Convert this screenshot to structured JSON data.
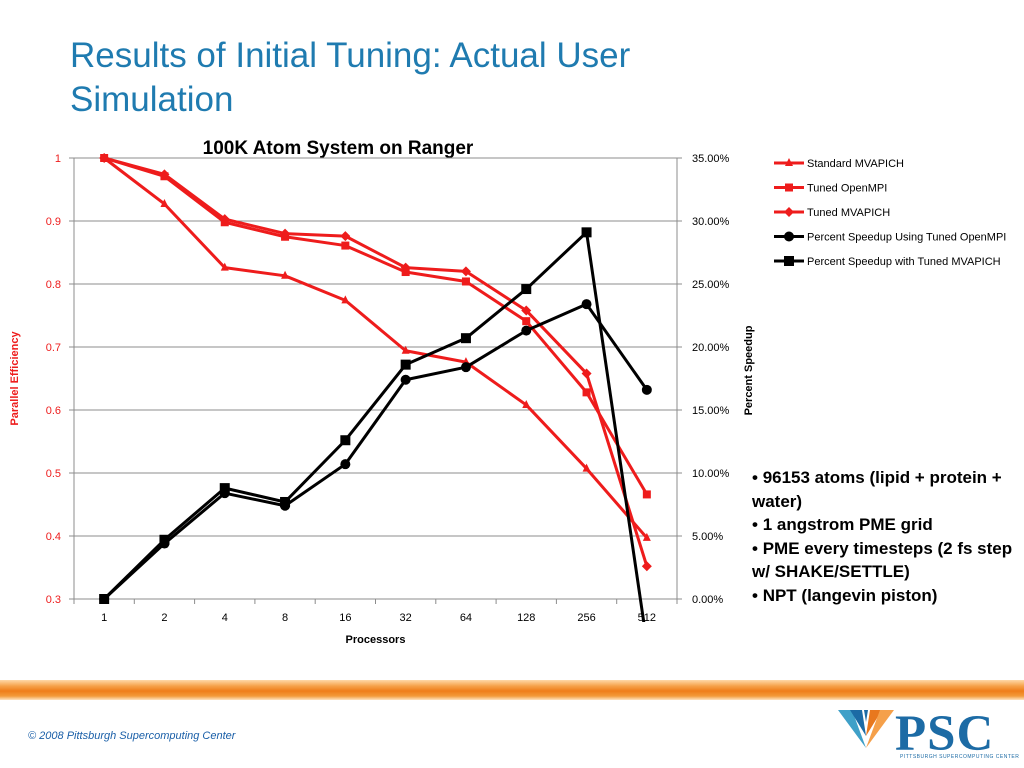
{
  "slide": {
    "title": "Results of Initial Tuning: Actual User Simulation",
    "bullets": [
      "96153 atoms (lipid + protein + water)",
      "1 angstrom PME grid",
      "PME every timesteps (2 fs step w/ SHAKE/SETTLE)",
      "NPT (langevin piston)"
    ],
    "copyright": "© 2008 Pittsburgh Supercomputing Center",
    "logo_text": "PSC",
    "logo_subtext": "PITTSBURGH SUPERCOMPUTING CENTER"
  },
  "chart_data": {
    "type": "line",
    "title": "100K Atom System on Ranger",
    "xlabel": "Processors",
    "ylabel": "Parallel Efficiency",
    "y2label": "Percent Speedup",
    "categories": [
      "1",
      "2",
      "4",
      "8",
      "16",
      "32",
      "64",
      "128",
      "256",
      "512"
    ],
    "ylim": [
      0.3,
      1
    ],
    "yticks": [
      "1",
      "0.9",
      "0.8",
      "0.7",
      "0.6",
      "0.5",
      "0.4",
      "0.3"
    ],
    "y2lim": [
      0,
      35
    ],
    "y2ticks": [
      "35.00%",
      "30.00%",
      "25.00%",
      "20.00%",
      "15.00%",
      "10.00%",
      "5.00%",
      "0.00%"
    ],
    "grid": true,
    "legend_position": "right",
    "series": [
      {
        "name": "Standard MVAPICH",
        "axis": "left",
        "color": "#ee1c1c",
        "marker": "triangle",
        "values": [
          1.0,
          0.927,
          0.826,
          0.813,
          0.774,
          0.694,
          0.676,
          0.608,
          0.507,
          0.397
        ]
      },
      {
        "name": "Tuned OpenMPI",
        "axis": "left",
        "color": "#ee1c1c",
        "marker": "square",
        "values": [
          1.0,
          0.971,
          0.898,
          0.875,
          0.861,
          0.819,
          0.804,
          0.741,
          0.628,
          0.466
        ]
      },
      {
        "name": "Tuned MVAPICH",
        "axis": "left",
        "color": "#ee1c1c",
        "marker": "diamond",
        "values": [
          1.0,
          0.974,
          0.903,
          0.88,
          0.876,
          0.826,
          0.82,
          0.758,
          0.658,
          0.352
        ]
      },
      {
        "name": "Percent Speedup Using Tuned OpenMPI",
        "axis": "right",
        "color": "#000000",
        "marker": "circle",
        "values": [
          0.0,
          4.4,
          8.4,
          7.4,
          10.7,
          17.4,
          18.4,
          21.3,
          23.4,
          16.6
        ]
      },
      {
        "name": "Percent Speedup with Tuned MVAPICH",
        "axis": "right",
        "color": "#000000",
        "marker": "square",
        "values": [
          0.0,
          4.7,
          8.8,
          7.7,
          12.6,
          18.6,
          20.7,
          24.6,
          29.1,
          -3.5
        ]
      }
    ]
  }
}
